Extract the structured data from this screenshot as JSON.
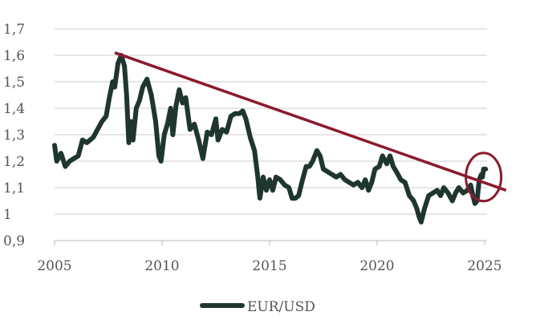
{
  "chart_data": {
    "type": "line",
    "title": "",
    "xlabel": "",
    "ylabel": "",
    "xlim": [
      2005,
      2026
    ],
    "ylim": [
      0.9,
      1.7
    ],
    "x_ticks": [
      2005,
      2010,
      2015,
      2020,
      2025
    ],
    "x_tick_labels": [
      "2005",
      "2010",
      "2015",
      "2020",
      "2025"
    ],
    "y_ticks": [
      0.9,
      1.0,
      1.1,
      1.2,
      1.3,
      1.4,
      1.5,
      1.6,
      1.7
    ],
    "y_tick_labels": [
      "0,9",
      "1",
      "1,1",
      "1,2",
      "1,3",
      "1,4",
      "1,5",
      "1,6",
      "1,7"
    ],
    "grid": "horizontal dashed",
    "legend_position": "bottom-center",
    "series": [
      {
        "name": "EUR/USD",
        "color": "#1f3630",
        "points": [
          [
            2005.0,
            1.26
          ],
          [
            2005.1,
            1.2
          ],
          [
            2005.3,
            1.23
          ],
          [
            2005.5,
            1.18
          ],
          [
            2005.7,
            1.2
          ],
          [
            2005.9,
            1.21
          ],
          [
            2006.1,
            1.22
          ],
          [
            2006.3,
            1.28
          ],
          [
            2006.5,
            1.27
          ],
          [
            2006.8,
            1.29
          ],
          [
            2007.0,
            1.32
          ],
          [
            2007.2,
            1.35
          ],
          [
            2007.4,
            1.37
          ],
          [
            2007.55,
            1.44
          ],
          [
            2007.7,
            1.5
          ],
          [
            2007.8,
            1.48
          ],
          [
            2007.95,
            1.57
          ],
          [
            2008.1,
            1.6
          ],
          [
            2008.25,
            1.56
          ],
          [
            2008.35,
            1.45
          ],
          [
            2008.45,
            1.27
          ],
          [
            2008.55,
            1.35
          ],
          [
            2008.65,
            1.28
          ],
          [
            2008.8,
            1.4
          ],
          [
            2008.95,
            1.43
          ],
          [
            2009.1,
            1.48
          ],
          [
            2009.3,
            1.51
          ],
          [
            2009.5,
            1.45
          ],
          [
            2009.7,
            1.35
          ],
          [
            2009.85,
            1.22
          ],
          [
            2009.95,
            1.2
          ],
          [
            2010.1,
            1.3
          ],
          [
            2010.25,
            1.34
          ],
          [
            2010.4,
            1.4
          ],
          [
            2010.5,
            1.3
          ],
          [
            2010.65,
            1.41
          ],
          [
            2010.8,
            1.47
          ],
          [
            2010.95,
            1.42
          ],
          [
            2011.1,
            1.44
          ],
          [
            2011.3,
            1.32
          ],
          [
            2011.5,
            1.34
          ],
          [
            2011.7,
            1.28
          ],
          [
            2011.9,
            1.21
          ],
          [
            2012.1,
            1.31
          ],
          [
            2012.3,
            1.3
          ],
          [
            2012.5,
            1.36
          ],
          [
            2012.6,
            1.28
          ],
          [
            2012.8,
            1.32
          ],
          [
            2013.0,
            1.31
          ],
          [
            2013.2,
            1.37
          ],
          [
            2013.4,
            1.38
          ],
          [
            2013.6,
            1.38
          ],
          [
            2013.75,
            1.39
          ],
          [
            2013.9,
            1.36
          ],
          [
            2014.1,
            1.29
          ],
          [
            2014.3,
            1.24
          ],
          [
            2014.45,
            1.14
          ],
          [
            2014.55,
            1.06
          ],
          [
            2014.7,
            1.14
          ],
          [
            2014.85,
            1.09
          ],
          [
            2015.0,
            1.13
          ],
          [
            2015.15,
            1.09
          ],
          [
            2015.3,
            1.14
          ],
          [
            2015.5,
            1.13
          ],
          [
            2015.7,
            1.11
          ],
          [
            2015.9,
            1.1
          ],
          [
            2016.05,
            1.06
          ],
          [
            2016.2,
            1.06
          ],
          [
            2016.35,
            1.07
          ],
          [
            2016.5,
            1.12
          ],
          [
            2016.7,
            1.18
          ],
          [
            2016.85,
            1.18
          ],
          [
            2017.0,
            1.2
          ],
          [
            2017.2,
            1.24
          ],
          [
            2017.35,
            1.22
          ],
          [
            2017.5,
            1.17
          ],
          [
            2017.7,
            1.16
          ],
          [
            2017.9,
            1.15
          ],
          [
            2018.1,
            1.14
          ],
          [
            2018.3,
            1.15
          ],
          [
            2018.5,
            1.13
          ],
          [
            2018.7,
            1.12
          ],
          [
            2018.9,
            1.11
          ],
          [
            2019.1,
            1.12
          ],
          [
            2019.3,
            1.1
          ],
          [
            2019.45,
            1.13
          ],
          [
            2019.6,
            1.09
          ],
          [
            2019.75,
            1.12
          ],
          [
            2019.9,
            1.17
          ],
          [
            2020.1,
            1.18
          ],
          [
            2020.25,
            1.22
          ],
          [
            2020.45,
            1.19
          ],
          [
            2020.6,
            1.22
          ],
          [
            2020.75,
            1.18
          ],
          [
            2020.9,
            1.16
          ],
          [
            2021.1,
            1.13
          ],
          [
            2021.3,
            1.12
          ],
          [
            2021.5,
            1.07
          ],
          [
            2021.7,
            1.05
          ],
          [
            2021.85,
            1.02
          ],
          [
            2021.95,
            0.99
          ],
          [
            2022.05,
            0.97
          ],
          [
            2022.2,
            1.02
          ],
          [
            2022.4,
            1.07
          ],
          [
            2022.6,
            1.08
          ],
          [
            2022.8,
            1.09
          ],
          [
            2022.95,
            1.07
          ],
          [
            2023.1,
            1.1
          ],
          [
            2023.3,
            1.08
          ],
          [
            2023.5,
            1.05
          ],
          [
            2023.65,
            1.08
          ],
          [
            2023.8,
            1.1
          ],
          [
            2024.0,
            1.08
          ],
          [
            2024.2,
            1.09
          ],
          [
            2024.35,
            1.11
          ],
          [
            2024.45,
            1.07
          ],
          [
            2024.55,
            1.04
          ],
          [
            2024.65,
            1.05
          ],
          [
            2024.75,
            1.13
          ],
          [
            2024.85,
            1.15
          ],
          [
            2024.9,
            1.14
          ],
          [
            2024.95,
            1.17
          ],
          [
            2025.05,
            1.17
          ]
        ]
      }
    ],
    "annotations": [
      {
        "type": "trend-line",
        "color": "#8b1a2e",
        "from": [
          2007.8,
          1.61
        ],
        "to": [
          2026.0,
          1.09
        ]
      },
      {
        "type": "circle",
        "color": "#8b1a2e",
        "center": [
          2024.95,
          1.14
        ]
      }
    ]
  }
}
